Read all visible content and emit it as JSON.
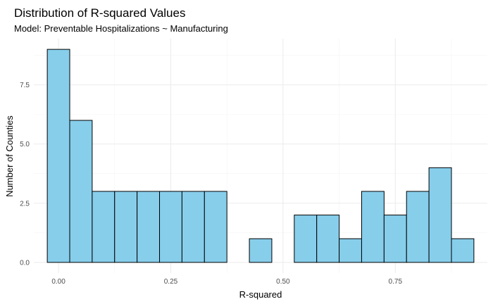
{
  "chart_data": {
    "type": "bar",
    "title": "Distribution of R-squared Values",
    "subtitle": "Model: Preventable Hospitalizations ~ Manufacturing",
    "xlabel": "R-squared",
    "ylabel": "Number of Counties",
    "bin_width": 0.05,
    "bins": [
      {
        "center": 0.0,
        "count": 9
      },
      {
        "center": 0.05,
        "count": 6
      },
      {
        "center": 0.1,
        "count": 3
      },
      {
        "center": 0.15,
        "count": 3
      },
      {
        "center": 0.2,
        "count": 3
      },
      {
        "center": 0.25,
        "count": 3
      },
      {
        "center": 0.3,
        "count": 3
      },
      {
        "center": 0.35,
        "count": 3
      },
      {
        "center": 0.4,
        "count": 0
      },
      {
        "center": 0.45,
        "count": 1
      },
      {
        "center": 0.5,
        "count": 0
      },
      {
        "center": 0.55,
        "count": 2
      },
      {
        "center": 0.6,
        "count": 2
      },
      {
        "center": 0.65,
        "count": 1
      },
      {
        "center": 0.7,
        "count": 3
      },
      {
        "center": 0.75,
        "count": 2
      },
      {
        "center": 0.8,
        "count": 3
      },
      {
        "center": 0.85,
        "count": 4
      },
      {
        "center": 0.9,
        "count": 1
      }
    ],
    "xlim": [
      -0.055,
      0.955
    ],
    "ylim": [
      -0.45,
      9.45
    ],
    "xticks": [
      0,
      0.25,
      0.5,
      0.75
    ],
    "xtick_labels": [
      "0.00",
      "0.25",
      "0.50",
      "0.75"
    ],
    "yticks": [
      0,
      2.5,
      5,
      7.5
    ],
    "ytick_labels": [
      "0.0",
      "2.5",
      "5.0",
      "7.5"
    ],
    "grid": true,
    "bar_fill": "#87ceeb",
    "bar_outline": "#000000"
  }
}
